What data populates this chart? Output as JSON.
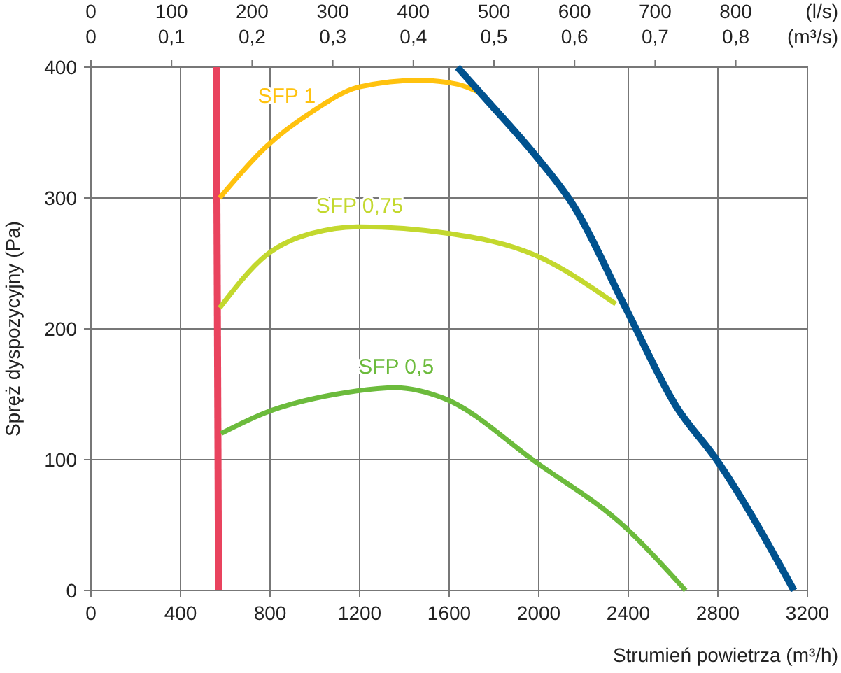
{
  "chart_data": {
    "type": "line",
    "xlabel": "Strumień powietrza (m³/h)",
    "ylabel": "Spręż dyspozycyjny (Pa)",
    "x2label": "(l/s)",
    "annotations": [
      "0",
      "0,1",
      "0,2",
      "0,3",
      "0,4",
      "0,5",
      "0,6",
      "0,7",
      "0,8",
      "(m³/s)"
    ],
    "xlim": [
      0,
      3200
    ],
    "xticks": [
      0,
      400,
      800,
      1200,
      1600,
      2000,
      2400,
      2800,
      3200
    ],
    "x2lim": [
      0,
      888.9
    ],
    "x2ticks": [
      0,
      100,
      200,
      300,
      400,
      500,
      600,
      700,
      800
    ],
    "ylim": [
      0,
      400
    ],
    "yticks": [
      0,
      100,
      200,
      300,
      400
    ],
    "grid": true,
    "legend": false,
    "marker": "none",
    "line_style": "solid",
    "series": [
      {
        "color": "#e9435e",
        "x": [
          560,
          570
        ],
        "values": [
          400,
          0
        ]
      },
      {
        "name": "SFP 1",
        "color": "#ffc20e",
        "x": [
          575,
          781,
          988,
          1200,
          1469,
          1637,
          1731
        ],
        "values": [
          300,
          339,
          366,
          385,
          390,
          387,
          381
        ]
      },
      {
        "name": "SFP 0,75",
        "color": "#c3d82e",
        "x": [
          575,
          781,
          988,
          1200,
          1594,
          1988,
          2344
        ],
        "values": [
          216,
          256,
          273,
          278,
          273,
          256,
          219
        ]
      },
      {
        "name": "SFP 0,5",
        "color": "#6cbb3c",
        "x": [
          581,
          781,
          1094,
          1363,
          1575,
          1988,
          2388,
          2656
        ],
        "values": [
          120,
          136,
          150,
          155,
          147,
          98,
          48,
          0
        ]
      },
      {
        "color": "#00528f",
        "x": [
          1637,
          1762,
          1988,
          2156,
          2388,
          2613,
          2794,
          3140
        ],
        "values": [
          400,
          376,
          332,
          294,
          216,
          141,
          100,
          0
        ]
      }
    ]
  }
}
